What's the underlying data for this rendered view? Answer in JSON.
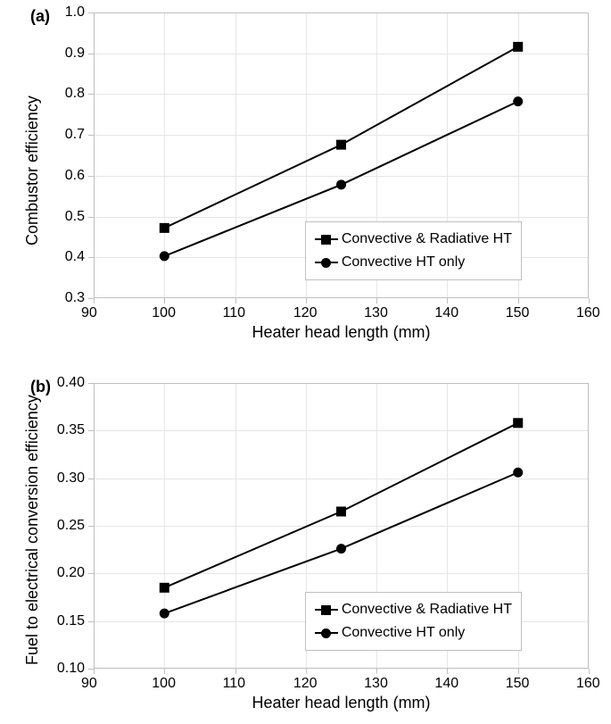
{
  "global": {
    "xlabel": "Heater head length (mm)",
    "xlim": [
      90,
      160
    ],
    "xticks": [
      90,
      100,
      110,
      120,
      130,
      140,
      150,
      160
    ],
    "grid_color": "#e6e6e6",
    "axis_color": "#bfbfbf",
    "line_color": "#000000",
    "line_width": 2,
    "marker_size": 11,
    "background_color": "#ffffff",
    "font_family": "Arial",
    "label_fontsize": 18,
    "tick_fontsize": 16,
    "panel_label_fontsize": 18
  },
  "chartA": {
    "panel_label": "(a)",
    "ylabel": "Combustor efficiency",
    "ylim": [
      0.3,
      1.0
    ],
    "yticks": [
      0.3,
      0.4,
      0.5,
      0.6,
      0.7,
      0.8,
      0.9,
      1.0
    ],
    "ytick_labels": [
      "0.3",
      "0.4",
      "0.5",
      "0.6",
      "0.7",
      "0.8",
      "0.9",
      "1.0"
    ],
    "series": [
      {
        "name": "Convective & Radiative HT",
        "marker": "square",
        "x": [
          100,
          125,
          150
        ],
        "y": [
          0.472,
          0.676,
          0.916
        ]
      },
      {
        "name": "Convective HT only",
        "marker": "circle",
        "x": [
          100,
          125,
          150
        ],
        "y": [
          0.403,
          0.578,
          0.782
        ]
      }
    ],
    "legend_position": "inside-bottom-right"
  },
  "chartB": {
    "panel_label": "(b)",
    "ylabel": "Fuel to electrical conversion efficiency",
    "ylim": [
      0.1,
      0.4
    ],
    "yticks": [
      0.1,
      0.15,
      0.2,
      0.25,
      0.3,
      0.35,
      0.4
    ],
    "ytick_labels": [
      "0.10",
      "0.15",
      "0.20",
      "0.25",
      "0.30",
      "0.35",
      "0.40"
    ],
    "series": [
      {
        "name": "Convective & Radiative HT",
        "marker": "square",
        "x": [
          100,
          125,
          150
        ],
        "y": [
          0.185,
          0.265,
          0.358
        ]
      },
      {
        "name": "Convective HT only",
        "marker": "circle",
        "x": [
          100,
          125,
          150
        ],
        "y": [
          0.158,
          0.226,
          0.306
        ]
      }
    ],
    "legend_position": "inside-bottom-right"
  }
}
